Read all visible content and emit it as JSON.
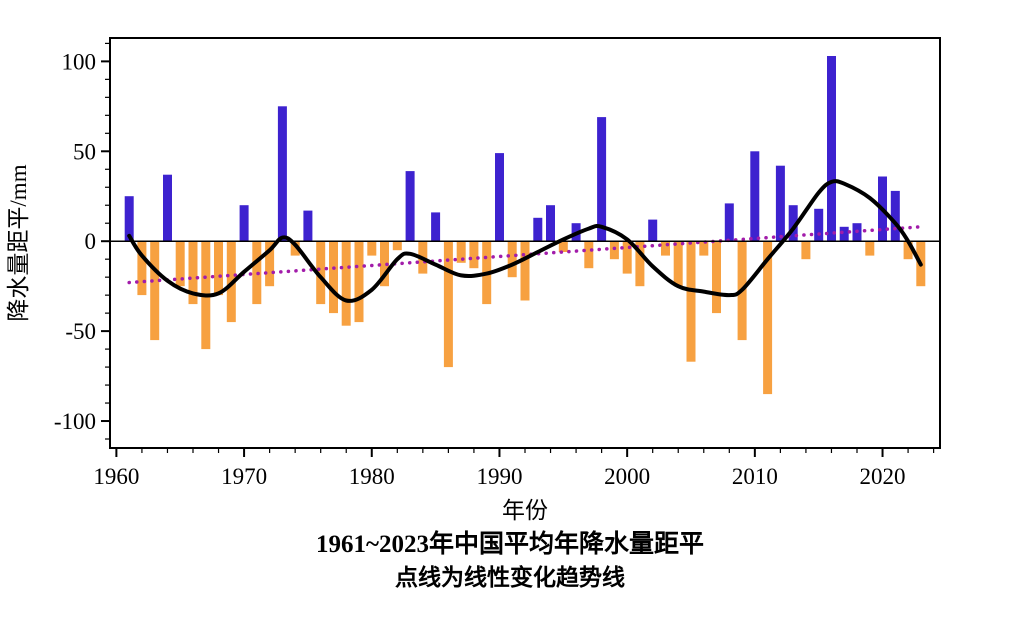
{
  "caption": {
    "line1": "1961~2023年中国平均年降水量距平",
    "line2": "点线为线性变化趋势线"
  },
  "chart_data": {
    "type": "bar",
    "title": "1961~2023年中国平均年降水量距平",
    "subtitle": "点线为线性变化趋势线",
    "xlabel": "年份",
    "ylabel": "降水量距平/mm",
    "xlim": [
      1959.5,
      2024.5
    ],
    "ylim": [
      -115,
      113
    ],
    "y_major_ticks": [
      -100,
      -50,
      0,
      50,
      100
    ],
    "x_major_ticks": [
      1960,
      1970,
      1980,
      1990,
      2000,
      2010,
      2020
    ],
    "grid": false,
    "x": [
      1961,
      1962,
      1963,
      1964,
      1965,
      1966,
      1967,
      1968,
      1969,
      1970,
      1971,
      1972,
      1973,
      1974,
      1975,
      1976,
      1977,
      1978,
      1979,
      1980,
      1981,
      1982,
      1983,
      1984,
      1985,
      1986,
      1987,
      1988,
      1989,
      1990,
      1991,
      1992,
      1993,
      1994,
      1995,
      1996,
      1997,
      1998,
      1999,
      2000,
      2001,
      2002,
      2003,
      2004,
      2005,
      2006,
      2007,
      2008,
      2009,
      2010,
      2011,
      2012,
      2013,
      2014,
      2015,
      2016,
      2017,
      2018,
      2019,
      2020,
      2021,
      2022,
      2023
    ],
    "values": [
      25,
      -30,
      -55,
      37,
      -25,
      -35,
      -60,
      -30,
      -45,
      20,
      -35,
      -25,
      75,
      -8,
      17,
      -35,
      -40,
      -47,
      -45,
      -8,
      -25,
      -5,
      39,
      -18,
      16,
      -70,
      -12,
      -15,
      -35,
      49,
      -20,
      -33,
      13,
      20,
      -6,
      10,
      -15,
      69,
      -10,
      -18,
      -25,
      12,
      -8,
      -25,
      -67,
      -8,
      -40,
      21,
      -55,
      50,
      -85,
      42,
      20,
      -10,
      18,
      103,
      8,
      10,
      -8,
      36,
      28,
      -10,
      -25
    ],
    "smooth_curve": [
      [
        1961,
        3
      ],
      [
        1962,
        -8
      ],
      [
        1964,
        -22
      ],
      [
        1966,
        -29
      ],
      [
        1968,
        -29
      ],
      [
        1970,
        -17
      ],
      [
        1972,
        -5
      ],
      [
        1973,
        2
      ],
      [
        1974,
        -2
      ],
      [
        1976,
        -20
      ],
      [
        1978,
        -33
      ],
      [
        1980,
        -27
      ],
      [
        1982,
        -10
      ],
      [
        1983,
        -7
      ],
      [
        1985,
        -13
      ],
      [
        1987,
        -19
      ],
      [
        1989,
        -18
      ],
      [
        1991,
        -13
      ],
      [
        1993,
        -6
      ],
      [
        1995,
        1
      ],
      [
        1997,
        7
      ],
      [
        1998,
        8
      ],
      [
        2000,
        1
      ],
      [
        2002,
        -14
      ],
      [
        2004,
        -25
      ],
      [
        2006,
        -28
      ],
      [
        2008,
        -30
      ],
      [
        2009,
        -27
      ],
      [
        2011,
        -10
      ],
      [
        2013,
        7
      ],
      [
        2015,
        27
      ],
      [
        2016,
        33
      ],
      [
        2017,
        32
      ],
      [
        2019,
        24
      ],
      [
        2021,
        10
      ],
      [
        2022,
        0
      ],
      [
        2023,
        -13
      ]
    ],
    "trend_line": {
      "label": "线性变化趋势线",
      "x": [
        1961,
        2023
      ],
      "y": [
        -23,
        8
      ],
      "style": "dotted"
    },
    "colors": {
      "positive": "#3d22cf",
      "negative": "#f7a141",
      "curve": "#000000",
      "trend": "#a21caa"
    }
  }
}
